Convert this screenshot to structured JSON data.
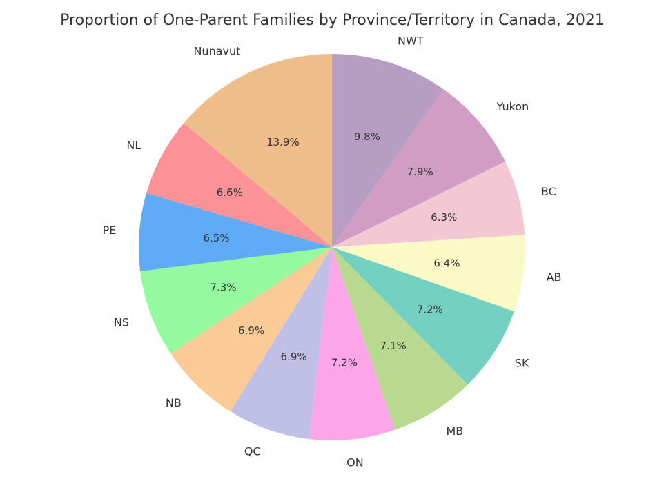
{
  "chart_data": {
    "type": "pie",
    "title": "Proportion of One-Parent Families by Province/Territory in Canada, 2021",
    "categories": [
      "NWT",
      "Yukon",
      "BC",
      "AB",
      "SK",
      "MB",
      "ON",
      "QC",
      "NB",
      "NS",
      "PE",
      "NL",
      "Nunavut"
    ],
    "values": [
      9.8,
      7.9,
      6.3,
      6.4,
      7.2,
      7.1,
      7.2,
      6.9,
      6.9,
      7.3,
      6.5,
      6.6,
      13.9
    ],
    "percent_labels": [
      "9.8%",
      "7.9%",
      "6.3%",
      "6.4%",
      "7.2%",
      "7.1%",
      "7.2%",
      "6.9%",
      "6.9%",
      "7.3%",
      "6.5%",
      "6.6%",
      "13.9%"
    ],
    "colors": [
      "#b69dc1",
      "#d09ec4",
      "#f3c8d3",
      "#fbfac7",
      "#74d0c0",
      "#b9da8e",
      "#fca6e9",
      "#c0c0e7",
      "#fbcb97",
      "#95f99f",
      "#5fabf6",
      "#fa9297",
      "#eebd8b"
    ],
    "start_angle_deg": 90,
    "direction": "clockwise",
    "legend": "none",
    "label_color": "#333333",
    "background_color": "#ffffff"
  }
}
